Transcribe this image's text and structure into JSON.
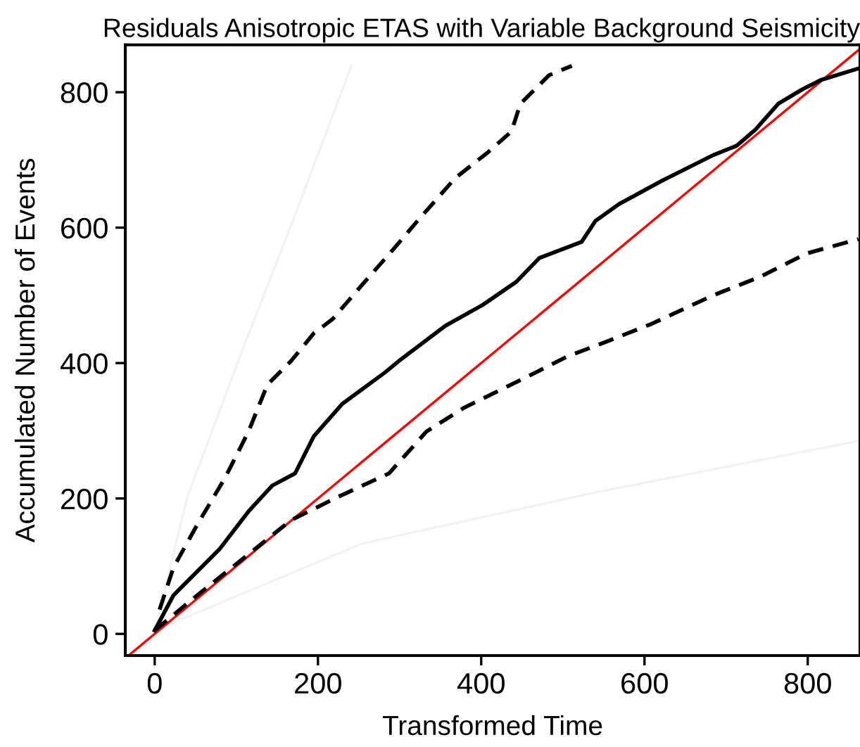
{
  "chart_data": {
    "type": "line",
    "title": "Residuals Anisotropic ETAS with Variable Background Seismicity",
    "xlabel": "Transformed Time",
    "ylabel": "Accumulated Number of Events",
    "xlim": [
      -36,
      864
    ],
    "ylim": [
      -32,
      870
    ],
    "xticks": [
      0,
      200,
      400,
      600,
      800
    ],
    "yticks": [
      0,
      200,
      400,
      600,
      800
    ],
    "grid": false,
    "legend": false,
    "marker": "none",
    "series": [
      {
        "color": "#f2f2f2",
        "line_style": "solid",
        "x": [
          0,
          40,
          109,
          167,
          241
        ],
        "values": [
          5,
          202,
          424,
          603,
          839
        ]
      },
      {
        "color": "#f2f2f2",
        "line_style": "solid",
        "x": [
          0,
          253,
          540,
          862
        ],
        "values": [
          5,
          133,
          209,
          285
        ]
      },
      {
        "color": "#ff0000",
        "line_style": "solid",
        "x": [
          -32,
          864
        ],
        "values": [
          -32,
          864
        ]
      },
      {
        "color": "#000000",
        "line_style": "solid",
        "x": [
          0,
          23,
          80,
          115,
          144,
          172,
          195,
          230,
          282,
          299,
          356,
          402,
          443,
          471,
          523,
          540,
          569,
          621,
          684,
          713,
          736,
          764,
          793,
          816,
          862
        ],
        "values": [
          5,
          57,
          126,
          181,
          219,
          237,
          292,
          340,
          386,
          403,
          455,
          486,
          520,
          555,
          579,
          610,
          635,
          669,
          707,
          721,
          745,
          783,
          804,
          818,
          835
        ]
      },
      {
        "color": "#000000",
        "line_style": "dashed",
        "x": [
          6,
          23,
          52,
          86,
          115,
          138,
          167,
          195,
          218,
          253,
          293,
          322,
          368,
          408,
          437,
          448,
          483,
          511
        ],
        "values": [
          36,
          98,
          161,
          230,
          299,
          368,
          403,
          444,
          465,
          514,
          569,
          610,
          673,
          711,
          742,
          783,
          825,
          839
        ]
      },
      {
        "color": "#000000",
        "line_style": "dashed",
        "x": [
          0,
          52,
          109,
          167,
          224,
          287,
          333,
          379,
          460,
          506,
          552,
          609,
          684,
          741,
          799,
          862
        ],
        "values": [
          5,
          57,
          112,
          168,
          202,
          237,
          299,
          334,
          382,
          410,
          431,
          458,
          500,
          527,
          562,
          583
        ]
      }
    ]
  }
}
